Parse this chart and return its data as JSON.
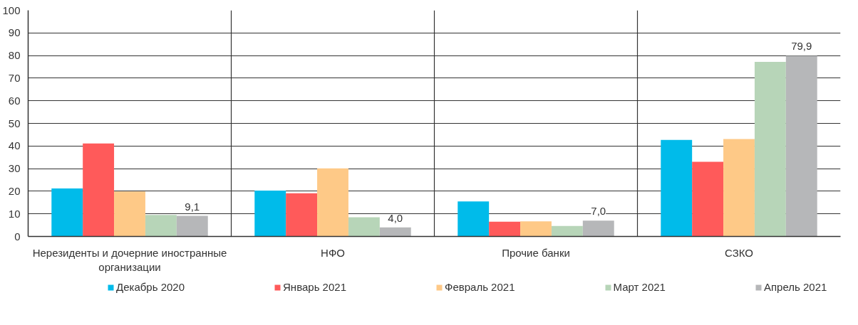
{
  "chart_data": {
    "type": "bar",
    "categories": [
      "Нерезиденты и дочерние иностранные организации",
      "НФО",
      "Прочие банки",
      "СЗКО"
    ],
    "series": [
      {
        "name": "Декабрь 2020",
        "color": "#00bbea",
        "values": [
          21.2,
          20.3,
          15.5,
          42.7
        ]
      },
      {
        "name": "Январь 2021",
        "color": "#ff5a5a",
        "values": [
          41.1,
          19.1,
          6.5,
          33.0
        ]
      },
      {
        "name": "Февраль 2021",
        "color": "#fec987",
        "values": [
          19.9,
          30.1,
          6.7,
          43.1
        ]
      },
      {
        "name": "Март 2021",
        "color": "#b7d5b8",
        "values": [
          9.5,
          8.5,
          4.6,
          77.2
        ]
      },
      {
        "name": "Апрель 2021",
        "color": "#b6b7b9",
        "values": [
          9.1,
          4.0,
          7.0,
          79.9
        ],
        "value_labels": [
          "9,1",
          "4,0",
          "7,0",
          "79,9"
        ]
      }
    ],
    "ylim": [
      0,
      100
    ],
    "yticks": [
      0,
      10,
      20,
      30,
      40,
      50,
      60,
      70,
      80,
      90,
      100
    ],
    "grid": true,
    "legend": "bottom"
  }
}
